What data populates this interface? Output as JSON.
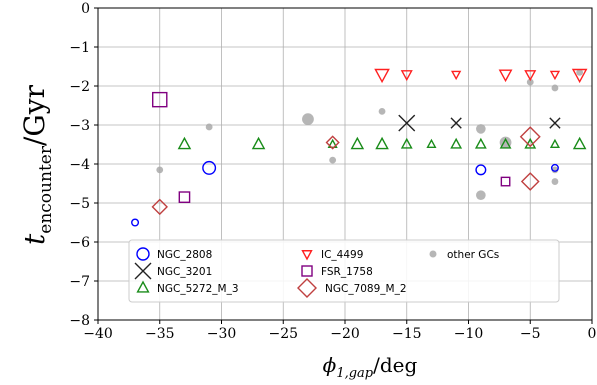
{
  "chart_data": {
    "type": "scatter",
    "xlabel": "ϕ1,gap/deg",
    "ylabel": "tencounter/Gyr",
    "xlim": [
      -40,
      0
    ],
    "ylim": [
      -8,
      0
    ],
    "x_ticks": [
      -40,
      -35,
      -30,
      -25,
      -20,
      -15,
      -10,
      -5,
      0
    ],
    "y_ticks": [
      0,
      -1,
      -2,
      -3,
      -4,
      -5,
      -6,
      -7,
      -8
    ],
    "grid": true,
    "legend_position": "bottom-left",
    "legend_columns": 3,
    "series": [
      {
        "name": "NGC_2808",
        "marker": "circle",
        "color": "#0000ff",
        "points": [
          [
            -37,
            -5.5,
            1
          ],
          [
            -31,
            -4.1,
            3
          ],
          [
            -9,
            -4.15,
            2
          ],
          [
            -3,
            -4.1,
            1
          ]
        ]
      },
      {
        "name": "NGC_3201",
        "marker": "x",
        "color": "#222222",
        "points": [
          [
            -15,
            -2.95,
            3
          ],
          [
            -11,
            -2.95,
            1.5
          ],
          [
            -3,
            -2.95,
            1.5
          ]
        ]
      },
      {
        "name": "NGC_5272_M_3",
        "marker": "triangle-up",
        "color": "#1a8c1a",
        "points": [
          [
            -33,
            -3.5,
            2
          ],
          [
            -27,
            -3.5,
            2
          ],
          [
            -21,
            -3.5,
            1
          ],
          [
            -19,
            -3.5,
            2
          ],
          [
            -17,
            -3.5,
            2
          ],
          [
            -15,
            -3.5,
            1.5
          ],
          [
            -13,
            -3.5,
            1
          ],
          [
            -11,
            -3.5,
            1.5
          ],
          [
            -9,
            -3.5,
            1.5
          ],
          [
            -7,
            -3.5,
            1.5
          ],
          [
            -5,
            -3.5,
            1.5
          ],
          [
            -3,
            -3.5,
            1
          ],
          [
            -1,
            -3.5,
            2
          ]
        ]
      },
      {
        "name": "IC_4499",
        "marker": "triangle-down",
        "color": "#ff2020",
        "points": [
          [
            -17,
            -1.7,
            2.5
          ],
          [
            -15,
            -1.7,
            1.5
          ],
          [
            -11,
            -1.7,
            1
          ],
          [
            -7,
            -1.7,
            2
          ],
          [
            -5,
            -1.7,
            1.5
          ],
          [
            -3,
            -1.7,
            1
          ],
          [
            -1,
            -1.7,
            2.5
          ]
        ]
      },
      {
        "name": "FSR_1758",
        "marker": "square",
        "color": "#800080",
        "points": [
          [
            -35,
            -2.35,
            2.5
          ],
          [
            -33,
            -4.85,
            1.5
          ],
          [
            -7,
            -4.45,
            1
          ]
        ]
      },
      {
        "name": "NGC_7089_M_2",
        "marker": "diamond",
        "color": "#c04040",
        "points": [
          [
            -35,
            -5.1,
            2
          ],
          [
            -21,
            -3.45,
            1.5
          ],
          [
            -5,
            -3.3,
            3
          ],
          [
            -5,
            -4.45,
            2.5
          ]
        ]
      },
      {
        "name": "other GCs",
        "marker": "dot",
        "color": "#a9a9a9",
        "points": [
          [
            -35,
            -4.15,
            1
          ],
          [
            -31,
            -3.05,
            1
          ],
          [
            -23,
            -2.85,
            3
          ],
          [
            -21,
            -3.9,
            1
          ],
          [
            -17,
            -2.65,
            1
          ],
          [
            -9,
            -3.1,
            2
          ],
          [
            -9,
            -4.8,
            2
          ],
          [
            -7,
            -3.45,
            3
          ],
          [
            -5,
            -1.9,
            1
          ],
          [
            -3,
            -2.05,
            1
          ],
          [
            -3,
            -4.15,
            1
          ],
          [
            -3,
            -4.45,
            1
          ],
          [
            -1,
            -1.65,
            1
          ]
        ]
      }
    ]
  }
}
